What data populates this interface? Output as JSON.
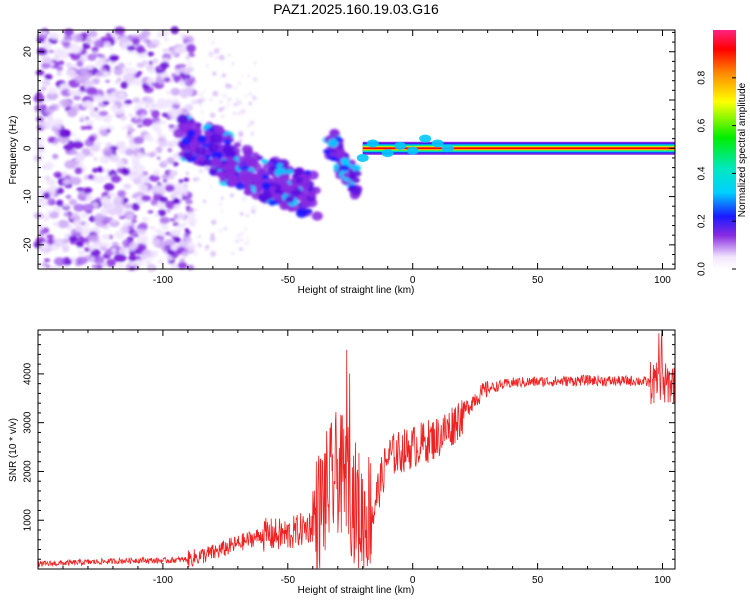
{
  "chart_data": [
    {
      "type": "heatmap",
      "title": "PAZ1.2025.160.19.03.G16",
      "xlabel": "Height of straight line (km)",
      "ylabel": "Frequency (Hz)",
      "xlim": [
        -150,
        105
      ],
      "ylim": [
        -25,
        24.5
      ],
      "xticks": [
        "-100",
        "-50",
        "0",
        "50",
        "100"
      ],
      "yticks": [
        "20",
        "10",
        "0",
        "-10",
        "-20"
      ],
      "colorbar": {
        "label": "Normalized spectral amplitude",
        "range": [
          0,
          1
        ],
        "ticks": [
          "0.0",
          "0.2",
          "0.4",
          "0.6",
          "0.8"
        ]
      },
      "features": {
        "noise_region_x": [
          -150,
          -90
        ],
        "descending_track": [
          {
            "x": -92,
            "y": 2.5
          },
          {
            "x": -80,
            "y": 0
          },
          {
            "x": -70,
            "y": -4
          },
          {
            "x": -60,
            "y": -6
          },
          {
            "x": -50,
            "y": -8
          },
          {
            "x": -40,
            "y": -10
          }
        ],
        "secondary_track": [
          {
            "x": -33,
            "y": 2
          },
          {
            "x": -28,
            "y": -3
          },
          {
            "x": -23,
            "y": -8
          }
        ],
        "carrier_line": {
          "x_start": -20,
          "x_end": 105,
          "y": 0
        }
      }
    },
    {
      "type": "line",
      "xlabel": "Height of straight line (km)",
      "ylabel": "SNR (10 * v/v)",
      "xlim": [
        -150,
        105
      ],
      "ylim": [
        0,
        4900
      ],
      "xticks": [
        "-100",
        "-50",
        "0",
        "50",
        "100"
      ],
      "yticks": [
        "1000",
        "2000",
        "3000",
        "4000"
      ],
      "color": "#ee2222",
      "series": [
        {
          "x": [
            -150,
            -130,
            -110,
            -100,
            -90,
            -80,
            -70,
            -60,
            -50,
            -40,
            -35,
            -30,
            -25,
            -20,
            -15,
            -10,
            -5,
            0,
            5,
            10,
            15,
            20,
            25,
            30,
            40,
            50,
            60,
            70,
            80,
            90,
            95,
            100,
            105
          ],
          "values": [
            100,
            140,
            180,
            170,
            200,
            330,
            520,
            700,
            700,
            900,
            1500,
            2000,
            1600,
            1000,
            1400,
            2300,
            2400,
            2500,
            2600,
            2700,
            2900,
            3200,
            3500,
            3700,
            3820,
            3840,
            3850,
            3870,
            3850,
            3860,
            3820,
            3750,
            3850
          ]
        }
      ]
    }
  ]
}
